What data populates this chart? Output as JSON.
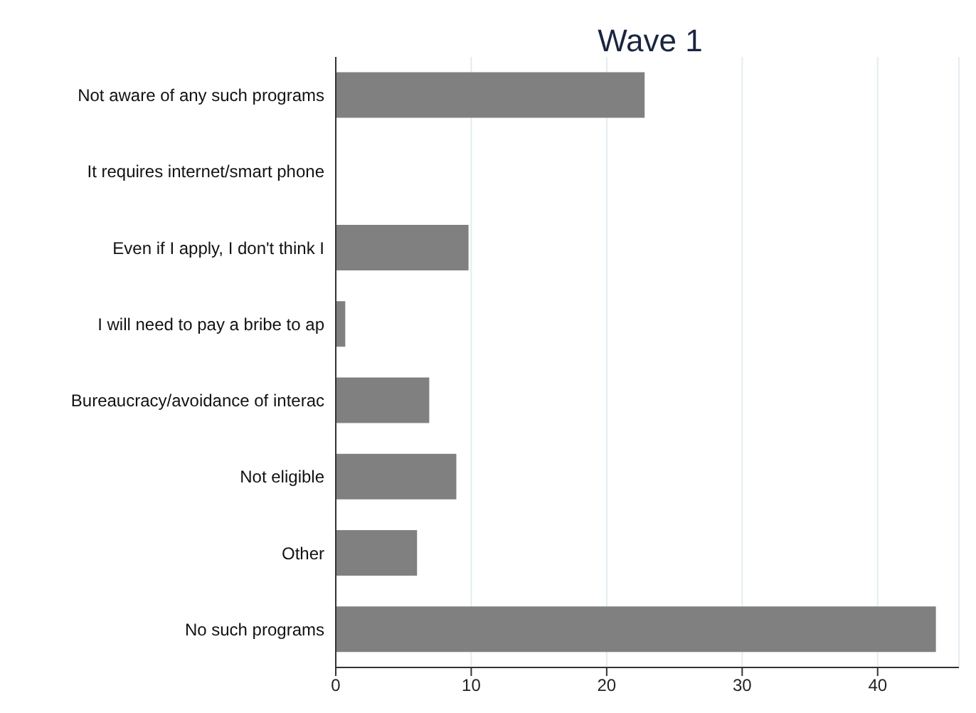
{
  "chart_data": {
    "type": "bar",
    "orientation": "horizontal",
    "title": "Wave 1",
    "categories": [
      "Not aware of any such programs",
      "It requires internet/smart phone",
      "Even if I apply, I don't think I",
      "I will need to pay a bribe to ap",
      "Bureaucracy/avoidance of interac",
      "Not eligible",
      "Other",
      "No such programs"
    ],
    "values": [
      22.8,
      0,
      9.8,
      0.7,
      6.9,
      8.9,
      6.0,
      44.3
    ],
    "color": "#808080",
    "xlim": [
      0,
      46
    ],
    "xticks": [
      0,
      10,
      20,
      30,
      40
    ],
    "grid": "x"
  }
}
